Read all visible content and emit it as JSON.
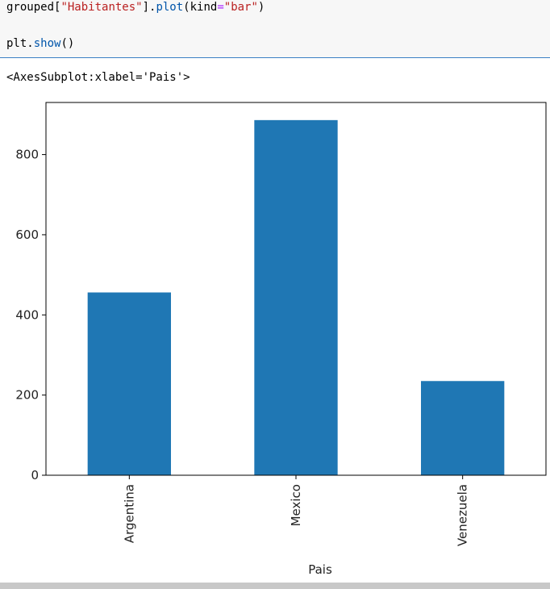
{
  "code": {
    "line1": {
      "t1": "grouped[",
      "t2": "\"Habitantes\"",
      "t3": "].",
      "t4": "plot",
      "t5": "(kind",
      "t6": "=",
      "t7": "\"bar\"",
      "t8": ")"
    },
    "line2": {
      "t1": "plt.",
      "t2": "show",
      "t3": "()"
    }
  },
  "output_text": "<AxesSubplot:xlabel='Pais'>",
  "colors": {
    "bar": "#1f77b4",
    "axes": "#000000",
    "text": "#222222"
  },
  "chart_data": {
    "type": "bar",
    "categories": [
      "Argentina",
      "Mexico",
      "Venezuela"
    ],
    "values": [
      456,
      886,
      235
    ],
    "xlabel": "Pais",
    "ylabel": "",
    "ylim": [
      0,
      930
    ],
    "yticks": [
      0,
      200,
      400,
      600,
      800
    ],
    "grid": false
  }
}
